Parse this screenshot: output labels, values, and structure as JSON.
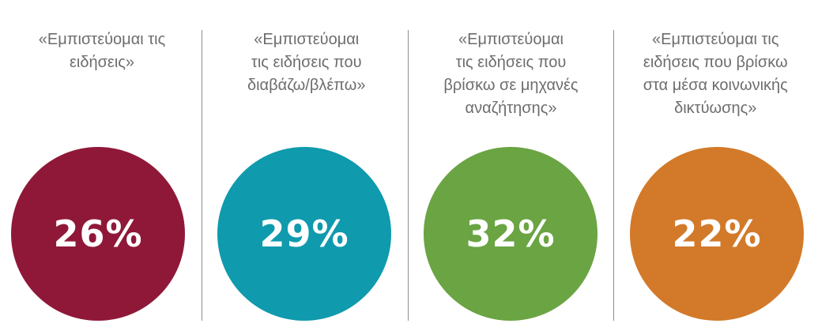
{
  "chart_data": {
    "type": "pie",
    "unit": "%",
    "items": [
      {
        "label_lines": [
          "«Εμπιστεύομαι τις",
          "ειδήσεις»"
        ],
        "value": 26,
        "value_label": "26%",
        "color": "#8f1838"
      },
      {
        "label_lines": [
          "«Εμπιστεύομαι",
          "τις ειδήσεις που",
          "διαβάζω/βλέπω»"
        ],
        "value": 29,
        "value_label": "29%",
        "color": "#0f9aad"
      },
      {
        "label_lines": [
          "«Εμπιστεύομαι",
          "τις ειδήσεις που",
          "βρίσκω σε μηχανές",
          "αναζήτησης»"
        ],
        "value": 32,
        "value_label": "32%",
        "color": "#6aa443"
      },
      {
        "label_lines": [
          "«Εμπιστεύομαι τις",
          "ειδήσεις που βρίσκω",
          "στα μέσα κοινωνικής",
          "δικτύωσης»"
        ],
        "value": 22,
        "value_label": "22%",
        "color": "#d27a2a"
      }
    ]
  }
}
